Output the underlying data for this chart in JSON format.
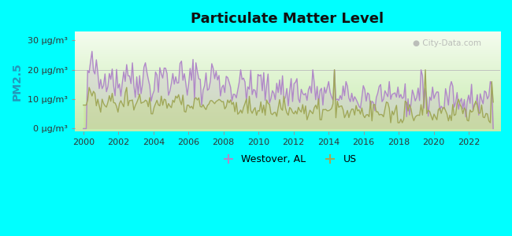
{
  "title": "Particulate Matter Level",
  "ylabel": "PM2.5",
  "background_outer": "#00FFFF",
  "background_inner_top": "#f0f8ee",
  "background_inner_bottom": "#c8eab0",
  "line1_color": "#b088c8",
  "line2_color": "#a0a858",
  "ytick_labels": [
    "0 μg/m³",
    "10 μg/m³",
    "20 μg/m³",
    "30 μg/m³"
  ],
  "ytick_values": [
    0,
    10,
    20,
    30
  ],
  "ylim": [
    -1,
    33
  ],
  "xlim": [
    1999.5,
    2023.8
  ],
  "xtick_years": [
    2000,
    2002,
    2004,
    2006,
    2008,
    2010,
    2012,
    2014,
    2016,
    2018,
    2020,
    2022
  ],
  "legend_labels": [
    "Westover, AL",
    "US"
  ],
  "watermark": "City-Data.com",
  "hline_y": 20,
  "title_fontsize": 13,
  "tick_fontsize": 8,
  "ylabel_fontsize": 10
}
